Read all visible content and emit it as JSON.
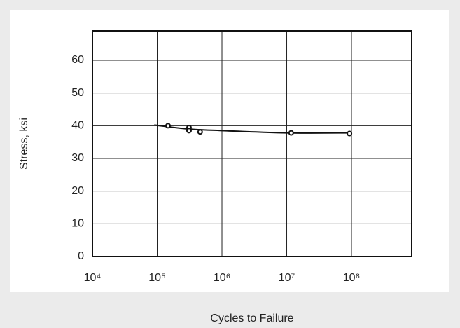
{
  "chart_data": {
    "type": "scatter",
    "x_label": "Cycles to Failure",
    "y_label": "Stress, ksi",
    "x_log": true,
    "grid": true,
    "xlim": [
      10000,
      850000000
    ],
    "ylim": [
      0,
      69
    ],
    "xticks": [
      {
        "value": 10000,
        "label": "10⁴"
      },
      {
        "value": 100000,
        "label": "10⁵"
      },
      {
        "value": 1000000,
        "label": "10⁶"
      },
      {
        "value": 10000000,
        "label": "10⁷"
      },
      {
        "value": 100000000,
        "label": "10⁸"
      }
    ],
    "yticks": [
      0,
      10,
      20,
      30,
      40,
      50,
      60
    ],
    "points": {
      "color": "#111111",
      "x": [
        147000,
        310000,
        310000,
        460000,
        11700000,
        93000000
      ],
      "y": [
        40.0,
        39.4,
        38.5,
        38.1,
        37.8,
        37.6
      ]
    },
    "curve": {
      "color": "#111111",
      "x": [
        90000,
        300000,
        1000000,
        10000000,
        100000000
      ],
      "y": [
        40.2,
        39.0,
        38.5,
        37.8,
        37.8
      ]
    }
  }
}
